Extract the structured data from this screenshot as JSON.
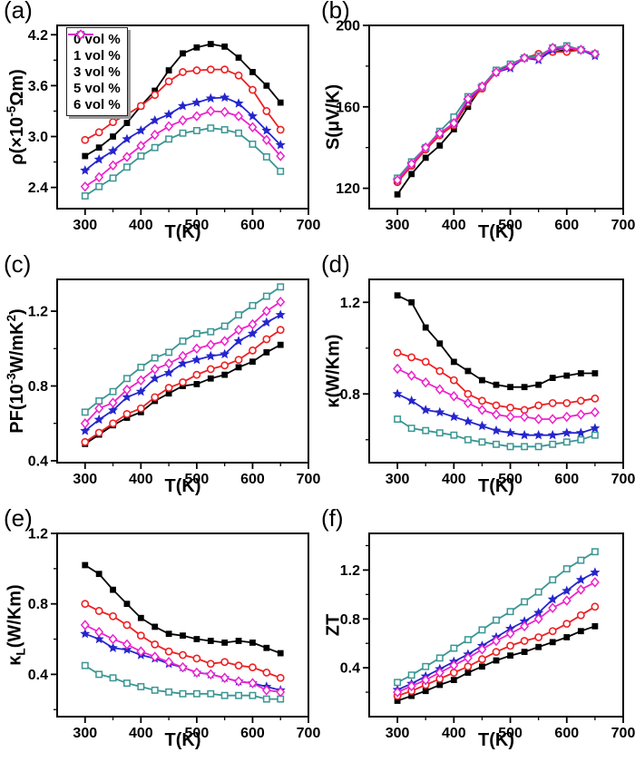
{
  "figure": {
    "background": "#ffffff",
    "x_axis_label": "T(K)",
    "legend_position": "top-left of panel (a)"
  },
  "chart_data": [
    {
      "panel": "(a)",
      "type": "line",
      "xlabel": "T(K)",
      "ylabel": "ρ(×10^{-5}Ωm)",
      "xlim": [
        250,
        700
      ],
      "ylim": [
        2.15,
        4.31
      ],
      "grid": false,
      "legend": true,
      "xticks": [
        300,
        400,
        500,
        600,
        700
      ],
      "xtick_labels": [
        "300",
        "400",
        "500",
        "600",
        "700"
      ],
      "xticks_minor": [
        350,
        450,
        550,
        650
      ],
      "yticks": [
        2.4,
        3.0,
        3.6,
        4.2
      ],
      "ytick_labels": [
        "2.4",
        "3.0",
        "3.6",
        "4.2"
      ],
      "yticks_minor": [
        2.7,
        3.3,
        3.9
      ],
      "x": [
        300,
        325,
        350,
        375,
        400,
        425,
        450,
        475,
        500,
        525,
        550,
        575,
        600,
        625,
        650
      ],
      "series": [
        {
          "name": "0 vol %",
          "color": "#000000",
          "marker": "square-filled",
          "values": [
            2.77,
            2.87,
            3.0,
            3.16,
            3.36,
            3.54,
            3.78,
            3.98,
            4.05,
            4.09,
            4.06,
            3.93,
            3.76,
            3.6,
            3.4
          ]
        },
        {
          "name": "1 vol %",
          "color": "#ed2024",
          "marker": "circle-open",
          "values": [
            2.96,
            3.05,
            3.17,
            3.26,
            3.36,
            3.49,
            3.65,
            3.76,
            3.78,
            3.79,
            3.79,
            3.72,
            3.55,
            3.3,
            3.08
          ]
        },
        {
          "name": "3 vol %",
          "color": "#2525cd",
          "marker": "star-filled",
          "values": [
            2.6,
            2.73,
            2.83,
            2.97,
            3.07,
            3.19,
            3.26,
            3.36,
            3.4,
            3.45,
            3.46,
            3.39,
            3.24,
            3.07,
            2.9
          ]
        },
        {
          "name": "5 vol %",
          "color": "#3a9693",
          "marker": "square-open",
          "values": [
            2.3,
            2.41,
            2.51,
            2.64,
            2.77,
            2.87,
            2.97,
            3.04,
            3.07,
            3.1,
            3.08,
            3.04,
            2.91,
            2.76,
            2.59
          ]
        },
        {
          "name": "6 vol %",
          "color": "#ee22cc",
          "marker": "diamond-open",
          "values": [
            2.41,
            2.52,
            2.66,
            2.76,
            2.89,
            3.02,
            3.12,
            3.19,
            3.24,
            3.3,
            3.29,
            3.24,
            3.11,
            2.96,
            2.77
          ]
        }
      ]
    },
    {
      "panel": "(b)",
      "type": "line",
      "xlabel": "T(K)",
      "ylabel": "S(μV/K)",
      "xlim": [
        250,
        700
      ],
      "ylim": [
        110,
        200
      ],
      "grid": false,
      "legend": false,
      "xticks": [
        300,
        400,
        500,
        600,
        700
      ],
      "xtick_labels": [
        "300",
        "400",
        "500",
        "600",
        "700"
      ],
      "xticks_minor": [
        350,
        450,
        550,
        650
      ],
      "yticks": [
        120,
        160,
        200
      ],
      "ytick_labels": [
        "120",
        "160",
        "200"
      ],
      "yticks_minor": [
        140,
        180
      ],
      "x": [
        300,
        325,
        350,
        375,
        400,
        425,
        450,
        475,
        500,
        525,
        550,
        575,
        600,
        625,
        650
      ],
      "series": [
        {
          "name": "0 vol %",
          "color": "#000000",
          "marker": "square-filled",
          "values": [
            117,
            127,
            135,
            141,
            149,
            160,
            170,
            178,
            180,
            184,
            185,
            187,
            188,
            188,
            186
          ]
        },
        {
          "name": "1 vol %",
          "color": "#ed2024",
          "marker": "circle-open",
          "values": [
            123,
            131,
            139,
            146,
            151,
            162,
            169,
            177,
            180,
            184,
            186,
            187,
            187,
            188,
            186
          ]
        },
        {
          "name": "3 vol %",
          "color": "#2525cd",
          "marker": "star-filled",
          "values": [
            124,
            132,
            140,
            147,
            152,
            163,
            170,
            177,
            179,
            184,
            183,
            188,
            189,
            188,
            185
          ]
        },
        {
          "name": "5 vol %",
          "color": "#3a9693",
          "marker": "square-open",
          "values": [
            125,
            133,
            140,
            148,
            155,
            165,
            170,
            178,
            181,
            184,
            185,
            189,
            190,
            188,
            186
          ]
        },
        {
          "name": "6 vol %",
          "color": "#ee22cc",
          "marker": "diamond-open",
          "values": [
            124,
            132,
            140,
            147,
            152,
            164,
            170,
            177,
            180,
            184,
            184,
            189,
            189,
            188,
            186
          ]
        }
      ]
    },
    {
      "panel": "(c)",
      "type": "line",
      "xlabel": "T(K)",
      "ylabel": "PF(10^{-3}W/mK^{2})",
      "xlim": [
        250,
        700
      ],
      "ylim": [
        0.39,
        1.37
      ],
      "grid": false,
      "legend": false,
      "xticks": [
        300,
        400,
        500,
        600,
        700
      ],
      "xtick_labels": [
        "300",
        "400",
        "500",
        "600",
        "700"
      ],
      "xticks_minor": [
        350,
        450,
        550,
        650
      ],
      "yticks": [
        0.4,
        0.8,
        1.2
      ],
      "ytick_labels": [
        "0.4",
        "0.8",
        "1.2"
      ],
      "yticks_minor": [
        0.6,
        1.0
      ],
      "x": [
        300,
        325,
        350,
        375,
        400,
        425,
        450,
        475,
        500,
        525,
        550,
        575,
        600,
        625,
        650
      ],
      "series": [
        {
          "name": "0 vol %",
          "color": "#000000",
          "marker": "square-filled",
          "values": [
            0.49,
            0.54,
            0.59,
            0.63,
            0.66,
            0.72,
            0.76,
            0.8,
            0.81,
            0.84,
            0.86,
            0.9,
            0.93,
            0.98,
            1.02
          ]
        },
        {
          "name": "1 vol %",
          "color": "#ed2024",
          "marker": "circle-open",
          "values": [
            0.5,
            0.55,
            0.6,
            0.65,
            0.68,
            0.74,
            0.79,
            0.82,
            0.86,
            0.89,
            0.91,
            0.94,
            0.99,
            1.05,
            1.1
          ]
        },
        {
          "name": "3 vol %",
          "color": "#2525cd",
          "marker": "star-filled",
          "values": [
            0.56,
            0.62,
            0.67,
            0.74,
            0.77,
            0.84,
            0.87,
            0.92,
            0.94,
            0.96,
            0.97,
            1.04,
            1.08,
            1.14,
            1.18
          ]
        },
        {
          "name": "5 vol %",
          "color": "#3a9693",
          "marker": "square-open",
          "values": [
            0.66,
            0.72,
            0.77,
            0.84,
            0.9,
            0.95,
            0.98,
            1.04,
            1.08,
            1.09,
            1.12,
            1.18,
            1.23,
            1.28,
            1.33
          ]
        },
        {
          "name": "6 vol %",
          "color": "#ee22cc",
          "marker": "diamond-open",
          "values": [
            0.6,
            0.68,
            0.71,
            0.78,
            0.83,
            0.89,
            0.92,
            0.96,
            1.0,
            1.02,
            1.04,
            1.1,
            1.13,
            1.2,
            1.25
          ]
        }
      ]
    },
    {
      "panel": "(d)",
      "type": "line",
      "xlabel": "T(K)",
      "ylabel": "κ(W/Km)",
      "xlim": [
        250,
        700
      ],
      "ylim": [
        0.5,
        1.3
      ],
      "grid": false,
      "legend": false,
      "xticks": [
        300,
        400,
        500,
        600,
        700
      ],
      "xtick_labels": [
        "300",
        "400",
        "500",
        "600",
        "700"
      ],
      "xticks_minor": [
        350,
        450,
        550,
        650
      ],
      "yticks": [
        0.8,
        1.2
      ],
      "ytick_labels": [
        "0.8",
        "1.2"
      ],
      "yticks_minor": [
        0.6,
        1.0
      ],
      "x": [
        300,
        325,
        350,
        375,
        400,
        425,
        450,
        475,
        500,
        525,
        550,
        575,
        600,
        625,
        650
      ],
      "series": [
        {
          "name": "0 vol %",
          "color": "#000000",
          "marker": "square-filled",
          "values": [
            1.23,
            1.2,
            1.09,
            1.02,
            0.94,
            0.9,
            0.86,
            0.84,
            0.83,
            0.83,
            0.84,
            0.87,
            0.88,
            0.89,
            0.89
          ]
        },
        {
          "name": "1 vol %",
          "color": "#ed2024",
          "marker": "circle-open",
          "values": [
            0.98,
            0.96,
            0.94,
            0.9,
            0.86,
            0.8,
            0.77,
            0.75,
            0.74,
            0.73,
            0.75,
            0.76,
            0.76,
            0.77,
            0.78
          ]
        },
        {
          "name": "3 vol %",
          "color": "#2525cd",
          "marker": "star-filled",
          "values": [
            0.8,
            0.77,
            0.73,
            0.72,
            0.7,
            0.68,
            0.66,
            0.64,
            0.63,
            0.62,
            0.62,
            0.62,
            0.63,
            0.63,
            0.65
          ]
        },
        {
          "name": "5 vol %",
          "color": "#3a9693",
          "marker": "square-open",
          "values": [
            0.69,
            0.65,
            0.64,
            0.63,
            0.62,
            0.6,
            0.59,
            0.58,
            0.57,
            0.57,
            0.57,
            0.58,
            0.59,
            0.6,
            0.62
          ]
        },
        {
          "name": "6 vol %",
          "color": "#ee22cc",
          "marker": "diamond-open",
          "values": [
            0.91,
            0.88,
            0.85,
            0.82,
            0.79,
            0.76,
            0.73,
            0.71,
            0.7,
            0.7,
            0.69,
            0.69,
            0.7,
            0.71,
            0.72
          ]
        }
      ]
    },
    {
      "panel": "(e)",
      "type": "line",
      "xlabel": "T(K)",
      "ylabel": "κ_{L}(W/Km)",
      "xlim": [
        250,
        700
      ],
      "ylim": [
        0.16,
        1.2
      ],
      "grid": false,
      "legend": false,
      "xticks": [
        300,
        400,
        500,
        600,
        700
      ],
      "xtick_labels": [
        "300",
        "400",
        "500",
        "600",
        "700"
      ],
      "xticks_minor": [
        350,
        450,
        550,
        650
      ],
      "yticks": [
        0.4,
        0.8,
        1.2
      ],
      "ytick_labels": [
        "0.4",
        "0.8",
        "1.2"
      ],
      "yticks_minor": [
        0.2,
        0.6,
        1.0
      ],
      "x": [
        300,
        325,
        350,
        375,
        400,
        425,
        450,
        475,
        500,
        525,
        550,
        575,
        600,
        625,
        650
      ],
      "series": [
        {
          "name": "0 vol %",
          "color": "#000000",
          "marker": "square-filled",
          "values": [
            1.02,
            0.97,
            0.88,
            0.8,
            0.72,
            0.67,
            0.63,
            0.62,
            0.6,
            0.59,
            0.58,
            0.59,
            0.58,
            0.55,
            0.52
          ]
        },
        {
          "name": "1 vol %",
          "color": "#ed2024",
          "marker": "circle-open",
          "values": [
            0.8,
            0.76,
            0.73,
            0.68,
            0.62,
            0.57,
            0.53,
            0.51,
            0.49,
            0.46,
            0.47,
            0.45,
            0.44,
            0.41,
            0.38
          ]
        },
        {
          "name": "3 vol %",
          "color": "#2525cd",
          "marker": "star-filled",
          "values": [
            0.63,
            0.6,
            0.55,
            0.54,
            0.51,
            0.49,
            0.46,
            0.44,
            0.41,
            0.4,
            0.38,
            0.36,
            0.35,
            0.33,
            0.31
          ]
        },
        {
          "name": "5 vol %",
          "color": "#3a9693",
          "marker": "square-open",
          "values": [
            0.45,
            0.4,
            0.38,
            0.35,
            0.33,
            0.31,
            0.3,
            0.29,
            0.29,
            0.29,
            0.28,
            0.28,
            0.28,
            0.26,
            0.26
          ]
        },
        {
          "name": "6 vol %",
          "color": "#ee22cc",
          "marker": "diamond-open",
          "values": [
            0.68,
            0.64,
            0.6,
            0.57,
            0.53,
            0.5,
            0.47,
            0.44,
            0.41,
            0.4,
            0.38,
            0.36,
            0.35,
            0.31,
            0.3
          ]
        }
      ]
    },
    {
      "panel": "(f)",
      "type": "line",
      "xlabel": "T(K)",
      "ylabel": "ZT",
      "xlim": [
        250,
        700
      ],
      "ylim": [
        0.0,
        1.5
      ],
      "grid": false,
      "legend": false,
      "xticks": [
        300,
        400,
        500,
        600,
        700
      ],
      "xtick_labels": [
        "300",
        "400",
        "500",
        "600",
        "700"
      ],
      "xticks_minor": [
        350,
        450,
        550,
        650
      ],
      "yticks": [
        0.4,
        0.8,
        1.2
      ],
      "ytick_labels": [
        "0.4",
        "0.8",
        "1.2"
      ],
      "yticks_minor": [
        0.2,
        0.6,
        1.0,
        1.4
      ],
      "x": [
        300,
        325,
        350,
        375,
        400,
        425,
        450,
        475,
        500,
        525,
        550,
        575,
        600,
        625,
        650
      ],
      "series": [
        {
          "name": "0 vol %",
          "color": "#000000",
          "marker": "square-filled",
          "values": [
            0.13,
            0.17,
            0.21,
            0.26,
            0.3,
            0.36,
            0.41,
            0.46,
            0.5,
            0.53,
            0.57,
            0.61,
            0.65,
            0.7,
            0.74
          ]
        },
        {
          "name": "1 vol %",
          "color": "#ed2024",
          "marker": "circle-open",
          "values": [
            0.17,
            0.21,
            0.26,
            0.31,
            0.36,
            0.41,
            0.47,
            0.53,
            0.58,
            0.62,
            0.65,
            0.7,
            0.76,
            0.83,
            0.9
          ]
        },
        {
          "name": "3 vol %",
          "color": "#2525cd",
          "marker": "star-filled",
          "values": [
            0.22,
            0.27,
            0.33,
            0.39,
            0.45,
            0.51,
            0.58,
            0.65,
            0.72,
            0.78,
            0.85,
            0.96,
            1.03,
            1.12,
            1.18
          ]
        },
        {
          "name": "5 vol %",
          "color": "#3a9693",
          "marker": "square-open",
          "values": [
            0.28,
            0.34,
            0.41,
            0.48,
            0.56,
            0.63,
            0.71,
            0.79,
            0.86,
            0.94,
            1.02,
            1.12,
            1.21,
            1.28,
            1.35
          ]
        },
        {
          "name": "6 vol %",
          "color": "#ee22cc",
          "marker": "diamond-open",
          "values": [
            0.2,
            0.25,
            0.3,
            0.36,
            0.42,
            0.48,
            0.55,
            0.62,
            0.68,
            0.74,
            0.8,
            0.89,
            0.95,
            1.04,
            1.1
          ]
        }
      ]
    }
  ]
}
